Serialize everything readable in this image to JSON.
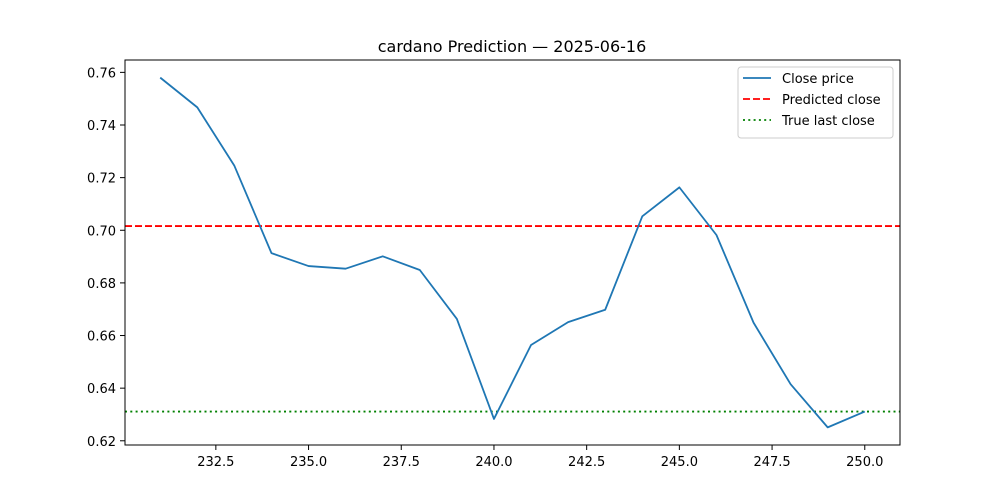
{
  "chart_data": {
    "type": "line",
    "title": "cardano Prediction — 2025-06-16",
    "xlabel": "",
    "ylabel": "",
    "xlim": [
      230.05,
      250.95
    ],
    "ylim": [
      0.6184,
      0.7647
    ],
    "x_ticks": [
      232.5,
      235.0,
      237.5,
      240.0,
      242.5,
      245.0,
      247.5,
      250.0
    ],
    "x_tick_labels": [
      "232.5",
      "235.0",
      "237.5",
      "240.0",
      "242.5",
      "245.0",
      "247.5",
      "250.0"
    ],
    "y_ticks": [
      0.62,
      0.64,
      0.66,
      0.68,
      0.7,
      0.72,
      0.74,
      0.76
    ],
    "y_tick_labels": [
      "0.62",
      "0.64",
      "0.66",
      "0.68",
      "0.70",
      "0.72",
      "0.74",
      "0.76"
    ],
    "grid": false,
    "legend_position": "top-right",
    "series": [
      {
        "name": "Close price",
        "color": "#1f77b4",
        "style": "solid",
        "x": [
          231,
          232,
          233,
          234,
          235,
          236,
          237,
          238,
          239,
          240,
          241,
          242,
          243,
          244,
          245,
          246,
          247,
          248,
          249,
          250
        ],
        "values": [
          0.758,
          0.7467,
          0.7245,
          0.6913,
          0.6864,
          0.6854,
          0.6901,
          0.6849,
          0.6663,
          0.6283,
          0.6564,
          0.6651,
          0.6698,
          0.7053,
          0.7163,
          0.6982,
          0.6649,
          0.6415,
          0.6251,
          0.6311
        ]
      }
    ],
    "reference_lines": [
      {
        "name": "Predicted close",
        "value": 0.7016,
        "color": "#ff0000",
        "style": "dashed"
      },
      {
        "name": "True last close",
        "value": 0.6311,
        "color": "#008000",
        "style": "dotted"
      }
    ]
  }
}
